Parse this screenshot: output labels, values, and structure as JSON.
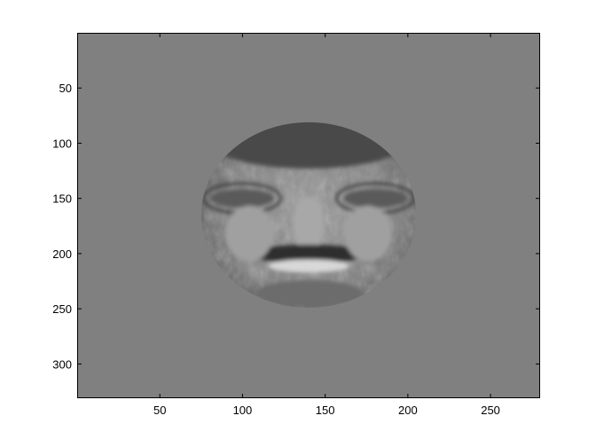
{
  "figure": {
    "background": "#ffffff",
    "axes_background": "#808080",
    "image_content": "masked-face-image",
    "colormap": "gray"
  },
  "axes": {
    "xlim": [
      0,
      280
    ],
    "ylim": [
      0,
      331
    ],
    "y_reversed": true,
    "x_ticks": [
      {
        "value": 50,
        "label": "50"
      },
      {
        "value": 100,
        "label": "100"
      },
      {
        "value": 150,
        "label": "150"
      },
      {
        "value": 200,
        "label": "200"
      },
      {
        "value": 250,
        "label": "250"
      }
    ],
    "y_ticks": [
      {
        "value": 50,
        "label": "50"
      },
      {
        "value": 100,
        "label": "100"
      },
      {
        "value": 150,
        "label": "150"
      },
      {
        "value": 200,
        "label": "200"
      },
      {
        "value": 250,
        "label": "250"
      },
      {
        "value": 300,
        "label": "300"
      }
    ]
  },
  "face_mask": {
    "center": [
      140,
      165
    ],
    "radii": [
      65,
      84
    ]
  }
}
